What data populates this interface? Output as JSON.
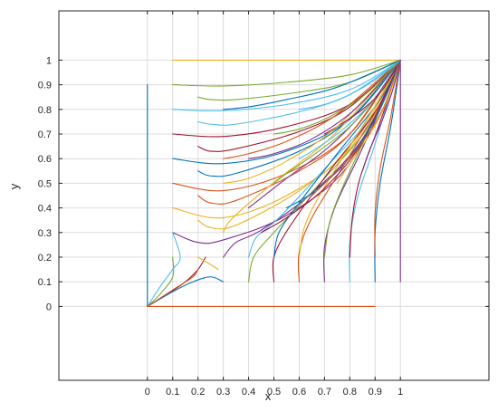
{
  "chart_data": {
    "type": "line",
    "title": "",
    "xlabel": "x",
    "ylabel": "y",
    "xlim": [
      -0.35,
      1.35
    ],
    "ylim": [
      -0.3,
      1.2
    ],
    "grid": "on",
    "legend": "none",
    "xticks": [
      0,
      0.1,
      0.2,
      0.3,
      0.4,
      0.5,
      0.6,
      0.7,
      0.8,
      0.9,
      1
    ],
    "yticks": [
      0,
      0.1,
      0.2,
      0.3,
      0.4,
      0.5,
      0.6,
      0.7,
      0.8,
      0.9,
      1
    ],
    "x_tick_labels": [
      "0",
      "0.1",
      "0.2",
      "0.3",
      "0.4",
      "0.5",
      "0.6",
      "0.7",
      "0.8",
      "0.9",
      "1"
    ],
    "y_tick_labels": [
      "0",
      "0.1",
      "0.2",
      "0.3",
      "0.4",
      "0.5",
      "0.6",
      "0.7",
      "0.8",
      "0.9",
      "1"
    ],
    "colors": [
      "#0072BD",
      "#D95319",
      "#EDB120",
      "#7E2F8E",
      "#77AC30",
      "#4DBEEE",
      "#A2142F"
    ],
    "series": [
      {
        "x": [
          0,
          0
        ],
        "y": [
          0,
          0.9
        ]
      },
      {
        "x": [
          0,
          0.9
        ],
        "y": [
          0,
          0
        ]
      },
      {
        "x": [
          0.1,
          1
        ],
        "y": [
          1,
          1
        ]
      },
      {
        "x": [
          1,
          1
        ],
        "y": [
          1,
          0.1
        ]
      },
      {
        "x": [
          0.1,
          0.3,
          0.55,
          0.8,
          1
        ],
        "y": [
          0.9,
          0.895,
          0.91,
          0.94,
          1
        ]
      },
      {
        "x": [
          0.1,
          0.3,
          0.55,
          0.8,
          1
        ],
        "y": [
          0.8,
          0.795,
          0.82,
          0.88,
          1
        ]
      },
      {
        "x": [
          0.1,
          0.3,
          0.55,
          0.8,
          1
        ],
        "y": [
          0.7,
          0.69,
          0.73,
          0.82,
          1
        ]
      },
      {
        "x": [
          0.1,
          0.3,
          0.55,
          0.8,
          1
        ],
        "y": [
          0.6,
          0.58,
          0.63,
          0.76,
          1
        ]
      },
      {
        "x": [
          0.1,
          0.3,
          0.55,
          0.8,
          1
        ],
        "y": [
          0.5,
          0.47,
          0.54,
          0.7,
          1
        ]
      },
      {
        "x": [
          0.1,
          0.3,
          0.55,
          0.8,
          1
        ],
        "y": [
          0.4,
          0.36,
          0.45,
          0.64,
          1
        ]
      },
      {
        "x": [
          0.1,
          0.2,
          0.3,
          0.55,
          0.8,
          1
        ],
        "y": [
          0.3,
          0.26,
          0.27,
          0.37,
          0.58,
          1
        ]
      },
      {
        "x": [
          0.2,
          0.25,
          0.35,
          0.6,
          0.8,
          1
        ],
        "y": [
          0.85,
          0.84,
          0.84,
          0.87,
          0.91,
          1
        ]
      },
      {
        "x": [
          0.2,
          0.25,
          0.35,
          0.6,
          0.8,
          1
        ],
        "y": [
          0.75,
          0.74,
          0.74,
          0.79,
          0.86,
          1
        ]
      },
      {
        "x": [
          0.2,
          0.25,
          0.35,
          0.6,
          0.8,
          1
        ],
        "y": [
          0.65,
          0.63,
          0.64,
          0.71,
          0.81,
          1
        ]
      },
      {
        "x": [
          0.2,
          0.25,
          0.35,
          0.6,
          0.8,
          1
        ],
        "y": [
          0.55,
          0.53,
          0.54,
          0.63,
          0.76,
          1
        ]
      },
      {
        "x": [
          0.2,
          0.25,
          0.35,
          0.6,
          0.8,
          1
        ],
        "y": [
          0.45,
          0.42,
          0.43,
          0.55,
          0.7,
          1
        ]
      },
      {
        "x": [
          0.2,
          0.25,
          0.35,
          0.6,
          0.8,
          1
        ],
        "y": [
          0.35,
          0.32,
          0.33,
          0.47,
          0.65,
          1
        ]
      },
      {
        "x": [
          0.3,
          0.35,
          0.45,
          0.65,
          0.85,
          1
        ],
        "y": [
          0.2,
          0.26,
          0.31,
          0.46,
          0.68,
          1
        ]
      },
      {
        "x": [
          0.4,
          0.42,
          0.5,
          0.7,
          0.88,
          1
        ],
        "y": [
          0.1,
          0.2,
          0.3,
          0.52,
          0.74,
          1
        ]
      },
      {
        "x": [
          0.4,
          0.43,
          0.52,
          0.72,
          0.9,
          1
        ],
        "y": [
          0.2,
          0.28,
          0.36,
          0.58,
          0.79,
          1
        ]
      },
      {
        "x": [
          0.5,
          0.5,
          0.56,
          0.72,
          0.9,
          1
        ],
        "y": [
          0.1,
          0.2,
          0.32,
          0.55,
          0.79,
          1
        ]
      },
      {
        "x": [
          0.5,
          0.52,
          0.6,
          0.75,
          0.92,
          1
        ],
        "y": [
          0.2,
          0.3,
          0.42,
          0.62,
          0.84,
          1
        ]
      },
      {
        "x": [
          0.6,
          0.6,
          0.65,
          0.78,
          0.93,
          1
        ],
        "y": [
          0.1,
          0.22,
          0.36,
          0.58,
          0.84,
          1
        ]
      },
      {
        "x": [
          0.6,
          0.62,
          0.68,
          0.8,
          0.94,
          1
        ],
        "y": [
          0.2,
          0.32,
          0.45,
          0.65,
          0.88,
          1
        ]
      },
      {
        "x": [
          0.7,
          0.7,
          0.74,
          0.84,
          0.95,
          1
        ],
        "y": [
          0.1,
          0.24,
          0.4,
          0.62,
          0.87,
          1
        ]
      },
      {
        "x": [
          0.7,
          0.72,
          0.77,
          0.86,
          0.96,
          1
        ],
        "y": [
          0.2,
          0.34,
          0.48,
          0.68,
          0.9,
          1
        ]
      },
      {
        "x": [
          0.8,
          0.8,
          0.83,
          0.9,
          0.97,
          1
        ],
        "y": [
          0.1,
          0.26,
          0.44,
          0.66,
          0.9,
          1
        ]
      },
      {
        "x": [
          0.8,
          0.81,
          0.84,
          0.91,
          0.98,
          1
        ],
        "y": [
          0.2,
          0.36,
          0.52,
          0.72,
          0.93,
          1
        ]
      },
      {
        "x": [
          0.9,
          0.9,
          0.92,
          0.96,
          0.99,
          1
        ],
        "y": [
          0.1,
          0.3,
          0.5,
          0.72,
          0.92,
          1
        ]
      },
      {
        "x": [
          0.9,
          0.9,
          0.92,
          0.96,
          0.99,
          1
        ],
        "y": [
          0.2,
          0.38,
          0.56,
          0.76,
          0.94,
          1
        ]
      },
      {
        "x": [
          0.3,
          0.32,
          0.38,
          0.52,
          0.74,
          1
        ],
        "y": [
          0.3,
          0.34,
          0.4,
          0.52,
          0.7,
          1
        ]
      },
      {
        "x": [
          0.4,
          0.45,
          0.55,
          0.72,
          0.88,
          1
        ],
        "y": [
          0.4,
          0.44,
          0.52,
          0.65,
          0.82,
          1
        ]
      },
      {
        "x": [
          0.5,
          0.55,
          0.65,
          0.8,
          0.92,
          1
        ],
        "y": [
          0.5,
          0.54,
          0.61,
          0.73,
          0.87,
          1
        ]
      },
      {
        "x": [
          0.6,
          0.65,
          0.75,
          0.86,
          0.95,
          1
        ],
        "y": [
          0.6,
          0.63,
          0.7,
          0.8,
          0.91,
          1
        ]
      },
      {
        "x": [
          0.7,
          0.75,
          0.85,
          0.93,
          1
        ],
        "y": [
          0.7,
          0.73,
          0.8,
          0.88,
          1
        ]
      },
      {
        "x": [
          0.3,
          0.4,
          0.55,
          0.75,
          1
        ],
        "y": [
          0.8,
          0.81,
          0.84,
          0.89,
          1
        ]
      },
      {
        "x": [
          0.3,
          0.4,
          0.55,
          0.75,
          1
        ],
        "y": [
          0.6,
          0.62,
          0.67,
          0.78,
          1
        ]
      },
      {
        "x": [
          0.3,
          0.4,
          0.55,
          0.75,
          1
        ],
        "y": [
          0.5,
          0.52,
          0.59,
          0.73,
          1
        ]
      },
      {
        "x": [
          0.4,
          0.5,
          0.65,
          0.82,
          1
        ],
        "y": [
          0.6,
          0.62,
          0.68,
          0.8,
          1
        ]
      },
      {
        "x": [
          0.5,
          0.6,
          0.72,
          0.86,
          1
        ],
        "y": [
          0.7,
          0.72,
          0.77,
          0.86,
          1
        ]
      },
      {
        "x": [
          0.6,
          0.7,
          0.8,
          0.9,
          1
        ],
        "y": [
          0.8,
          0.82,
          0.86,
          0.92,
          1
        ]
      },
      {
        "x": [
          0.45,
          0.55,
          0.7,
          0.85,
          1
        ],
        "y": [
          0.3,
          0.36,
          0.48,
          0.67,
          1
        ]
      },
      {
        "x": [
          0.55,
          0.65,
          0.78,
          0.9,
          1
        ],
        "y": [
          0.4,
          0.46,
          0.58,
          0.76,
          1
        ]
      },
      {
        "x": [
          0.65,
          0.72,
          0.83,
          0.93,
          1
        ],
        "y": [
          0.45,
          0.52,
          0.64,
          0.8,
          1
        ]
      },
      {
        "x": [
          0.75,
          0.8,
          0.88,
          0.95,
          1
        ],
        "y": [
          0.5,
          0.58,
          0.7,
          0.84,
          1
        ]
      },
      {
        "x": [
          0.85,
          0.88,
          0.93,
          0.97,
          1
        ],
        "y": [
          0.55,
          0.64,
          0.76,
          0.88,
          1
        ]
      },
      {
        "x": [
          0,
          0.05,
          0.1,
          0.1
        ],
        "y": [
          0,
          0.05,
          0.12,
          0.2
        ]
      },
      {
        "x": [
          0,
          0.05,
          0.1,
          0.13,
          0.1
        ],
        "y": [
          0,
          0.08,
          0.15,
          0.2,
          0.3
        ]
      },
      {
        "x": [
          0,
          0.08,
          0.15,
          0.2,
          0.23
        ],
        "y": [
          0,
          0.05,
          0.1,
          0.15,
          0.2
        ]
      },
      {
        "x": [
          0,
          0.1,
          0.18,
          0.25,
          0.3
        ],
        "y": [
          0,
          0.06,
          0.1,
          0.12,
          0.1
        ]
      },
      {
        "x": [
          0,
          0.06,
          0.12,
          0.18,
          0.2
        ],
        "y": [
          0,
          0.04,
          0.08,
          0.12,
          0.15
        ]
      },
      {
        "x": [
          0.2,
          0.25,
          0.28
        ],
        "y": [
          0.2,
          0.17,
          0.15
        ]
      }
    ]
  }
}
